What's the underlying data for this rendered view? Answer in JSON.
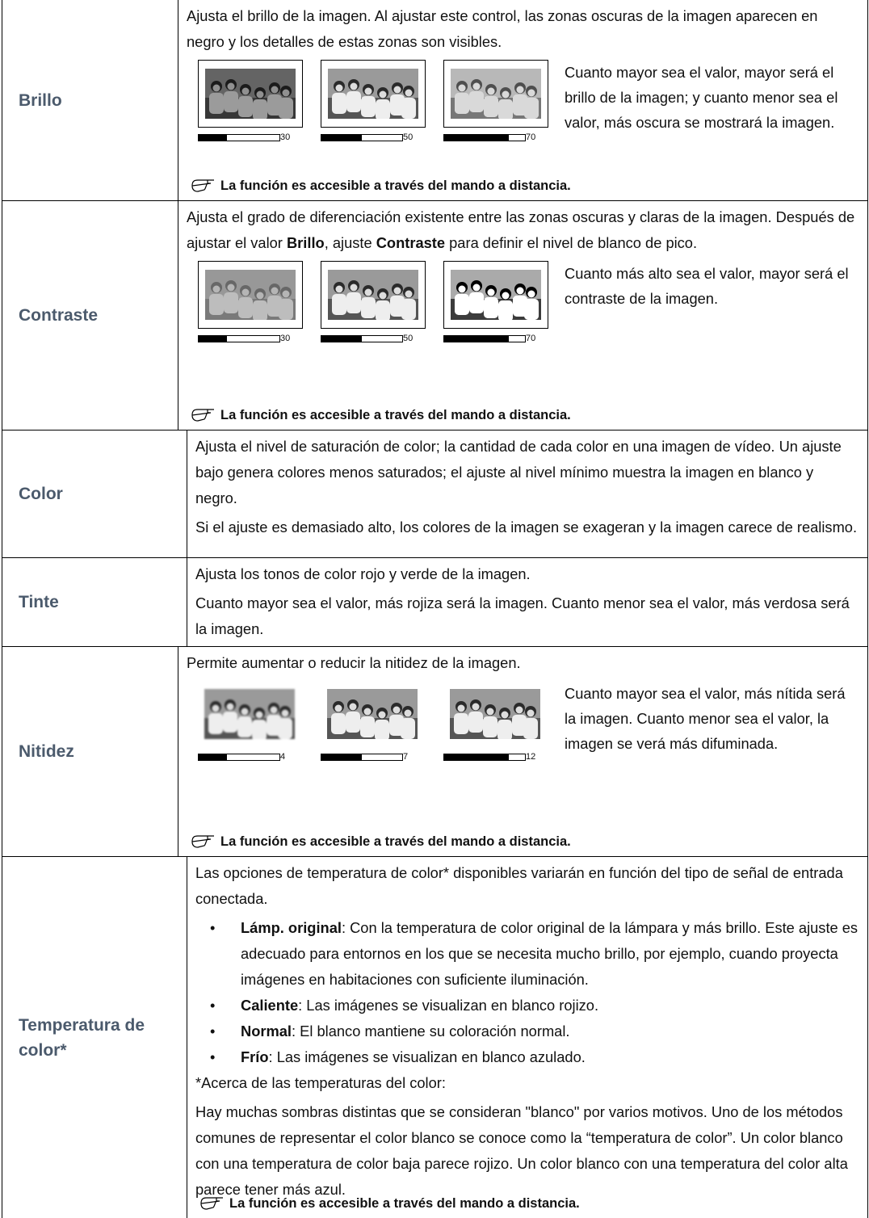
{
  "rows": [
    {
      "label": "Brillo",
      "paragraphs": [
        [
          "Ajusta el brillo de la imagen. Al ajustar este control, las zonas oscuras de la imagen aparecen en negro y los detalles de estas zonas son visibles."
        ]
      ],
      "figure": {
        "values": [
          30,
          50,
          70
        ],
        "caption": "Cuanto mayor sea el valor, mayor será el brillo de la imagen; y cuanto menor sea el valor, más oscura se mostrará la imagen."
      },
      "note": "La función es accesible a través del mando a distancia."
    },
    {
      "label": "Contraste",
      "paragraphs": [
        [
          "Ajusta el grado de diferenciación existente entre las zonas oscuras y claras de la imagen. Después de ajustar el valor ",
          {
            "bold": "Brillo"
          },
          ", ajuste ",
          {
            "bold": "Contraste"
          },
          " para definir el nivel de blanco de pico."
        ]
      ],
      "figure": {
        "values": [
          30,
          50,
          70
        ],
        "caption": "Cuanto más alto sea el valor, mayor será el contraste de la imagen."
      },
      "note": "La función es accesible a través del mando a distancia."
    },
    {
      "label": "Color",
      "paragraphs": [
        [
          "Ajusta el nivel de saturación de color; la cantidad de cada color en una imagen de vídeo. Un ajuste bajo genera colores menos saturados; el ajuste al nivel mínimo muestra la imagen en blanco y negro."
        ],
        [
          "Si el ajuste es demasiado alto, los colores de la imagen se exageran y la imagen carece de realismo."
        ]
      ]
    },
    {
      "label": "Tinte",
      "paragraphs": [
        [
          "Ajusta los tonos de color rojo y verde de la imagen."
        ],
        [
          "Cuanto mayor sea el valor, más rojiza será la imagen. Cuanto menor sea el valor, más verdosa será la imagen."
        ]
      ]
    },
    {
      "label": "Nitidez",
      "paragraphs": [
        [
          "Permite aumentar o reducir la nitidez de la imagen."
        ]
      ],
      "figure": {
        "values": [
          4,
          7,
          12
        ],
        "caption": "Cuanto mayor sea el valor, más nítida será la imagen. Cuanto menor sea el valor, la imagen se verá más difuminada."
      },
      "note": "La función es accesible a través del mando a distancia."
    },
    {
      "label": "Temperatura de color*",
      "paragraphs": [
        [
          "Las opciones de temperatura de color* disponibles variarán en función del tipo de señal de entrada conectada."
        ]
      ],
      "bullets": [
        [
          {
            "bold": "Lámp. original"
          },
          ": Con la temperatura de color original de la lámpara y más brillo. Este ajuste es adecuado para entornos en los que se necesita mucho brillo, por ejemplo, cuando proyecta imágenes en habitaciones con suficiente iluminación."
        ],
        [
          {
            "bold": "Caliente"
          },
          ": Las imágenes se visualizan en blanco rojizo."
        ],
        [
          {
            "bold": "Normal"
          },
          ": El blanco mantiene su coloración normal."
        ],
        [
          {
            "bold": "Frío"
          },
          ": Las imágenes se visualizan en blanco azulado."
        ]
      ],
      "after": [
        [
          "*Acerca de las temperaturas del color:"
        ],
        [
          "Hay muchas sombras distintas que se consideran \"blanco\" por varios motivos. Uno de los métodos comunes de representar el color blanco se conoce como la “temperatura de color”. Un color blanco con una temperatura de color baja parece rojizo. Un color blanco con una temperatura del color alta parece tener más azul."
        ]
      ],
      "note": "La función es accesible a través del mando a distancia."
    }
  ]
}
